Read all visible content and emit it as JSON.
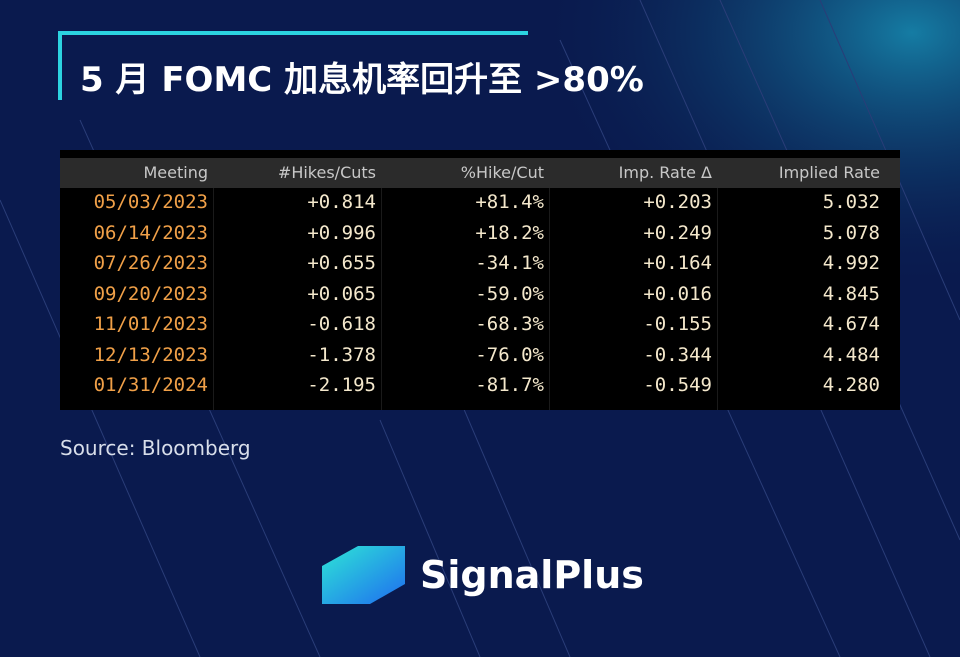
{
  "header": {
    "title": "5 月 FOMC 加息机率回升至 >80%"
  },
  "table": {
    "columns": [
      "Meeting",
      "#Hikes/Cuts",
      "%Hike/Cut",
      "Imp. Rate Δ",
      "Implied Rate"
    ],
    "rows": [
      [
        "05/03/2023",
        "+0.814",
        "+81.4%",
        "+0.203",
        "5.032"
      ],
      [
        "06/14/2023",
        "+0.996",
        "+18.2%",
        "+0.249",
        "5.078"
      ],
      [
        "07/26/2023",
        "+0.655",
        "-34.1%",
        "+0.164",
        "4.992"
      ],
      [
        "09/20/2023",
        "+0.065",
        "-59.0%",
        "+0.016",
        "4.845"
      ],
      [
        "11/01/2023",
        "-0.618",
        "-68.3%",
        "-0.155",
        "4.674"
      ],
      [
        "12/13/2023",
        "-1.378",
        "-76.0%",
        "-0.344",
        "4.484"
      ],
      [
        "01/31/2024",
        "-2.195",
        "-81.7%",
        "-0.549",
        "4.280"
      ]
    ]
  },
  "source": "Source: Bloomberg",
  "brand": "SignalPlus"
}
